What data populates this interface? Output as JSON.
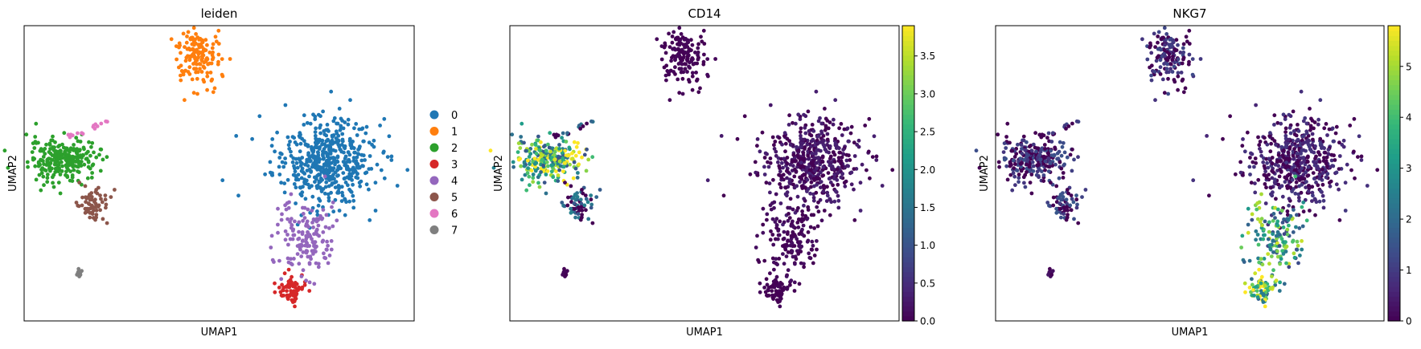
{
  "chart_data": [
    {
      "type": "scatter",
      "title": "leiden",
      "xlabel": "UMAP1",
      "ylabel": "UMAP2",
      "xlim": [
        -10,
        10
      ],
      "ylim": [
        -10,
        10
      ],
      "grid": false,
      "legend": {
        "placement": "right",
        "entries": [
          {
            "label": "0",
            "color": "#1f77b4"
          },
          {
            "label": "1",
            "color": "#ff7f0e"
          },
          {
            "label": "2",
            "color": "#2ca02c"
          },
          {
            "label": "3",
            "color": "#d62728"
          },
          {
            "label": "4",
            "color": "#9467bd"
          },
          {
            "label": "5",
            "color": "#8c564b"
          },
          {
            "label": "6",
            "color": "#e377c2"
          },
          {
            "label": "7",
            "color": "#7f7f7f"
          }
        ]
      },
      "clusters": [
        {
          "label": "0",
          "center": [
            5.4,
            0.8
          ],
          "spread": [
            1.3,
            1.5
          ],
          "n": 520
        },
        {
          "label": "1",
          "center": [
            -1.1,
            8.0
          ],
          "spread": [
            0.6,
            0.9
          ],
          "n": 150
        },
        {
          "label": "2",
          "center": [
            -8.0,
            0.9
          ],
          "spread": [
            0.9,
            0.7
          ],
          "n": 260
        },
        {
          "label": "3",
          "center": [
            3.8,
            -7.9
          ],
          "spread": [
            0.4,
            0.5
          ],
          "n": 70
        },
        {
          "label": "4",
          "center": [
            4.5,
            -4.3
          ],
          "spread": [
            0.7,
            1.2
          ],
          "n": 150
        },
        {
          "label": "5",
          "center": [
            -6.5,
            -2.2
          ],
          "spread": [
            0.45,
            0.55
          ],
          "n": 60
        },
        {
          "label": "6",
          "center": [
            -6.8,
            3.0
          ],
          "spread": [
            0.8,
            0.3
          ],
          "n": 16
        },
        {
          "label": "7",
          "center": [
            -7.2,
            -6.7
          ],
          "spread": [
            0.08,
            0.15
          ],
          "n": 10
        }
      ]
    },
    {
      "type": "scatter",
      "title": "CD14",
      "xlabel": "UMAP1",
      "ylabel": "UMAP2",
      "xlim": [
        -10,
        10
      ],
      "ylim": [
        -10,
        10
      ],
      "grid": false,
      "colorbar": {
        "colormap": "viridis",
        "min": 0.0,
        "max": 3.9,
        "ticks": [
          "0.0",
          "0.5",
          "1.0",
          "1.5",
          "2.0",
          "2.5",
          "3.0",
          "3.5"
        ],
        "tick_values": [
          0,
          0.5,
          1.0,
          1.5,
          2.0,
          2.5,
          3.0,
          3.5
        ]
      },
      "expression_by_cluster": {
        "0": 0.25,
        "1": 0.05,
        "2": 2.6,
        "3": 0.05,
        "4": 0.1,
        "5": 1.1,
        "6": 1.0,
        "7": 0.05
      }
    },
    {
      "type": "scatter",
      "title": "NKG7",
      "xlabel": "UMAP1",
      "ylabel": "UMAP2",
      "xlim": [
        -10,
        10
      ],
      "ylim": [
        -10,
        10
      ],
      "grid": false,
      "colorbar": {
        "colormap": "viridis",
        "min": 0,
        "max": 5.8,
        "ticks": [
          "0",
          "1",
          "2",
          "3",
          "4",
          "5"
        ],
        "tick_values": [
          0,
          1,
          2,
          3,
          4,
          5
        ]
      },
      "expression_by_cluster": {
        "0": 0.6,
        "1": 0.8,
        "2": 0.9,
        "3": 4.8,
        "4": 3.3,
        "5": 1.0,
        "6": 0.8,
        "7": 0.2
      }
    }
  ]
}
